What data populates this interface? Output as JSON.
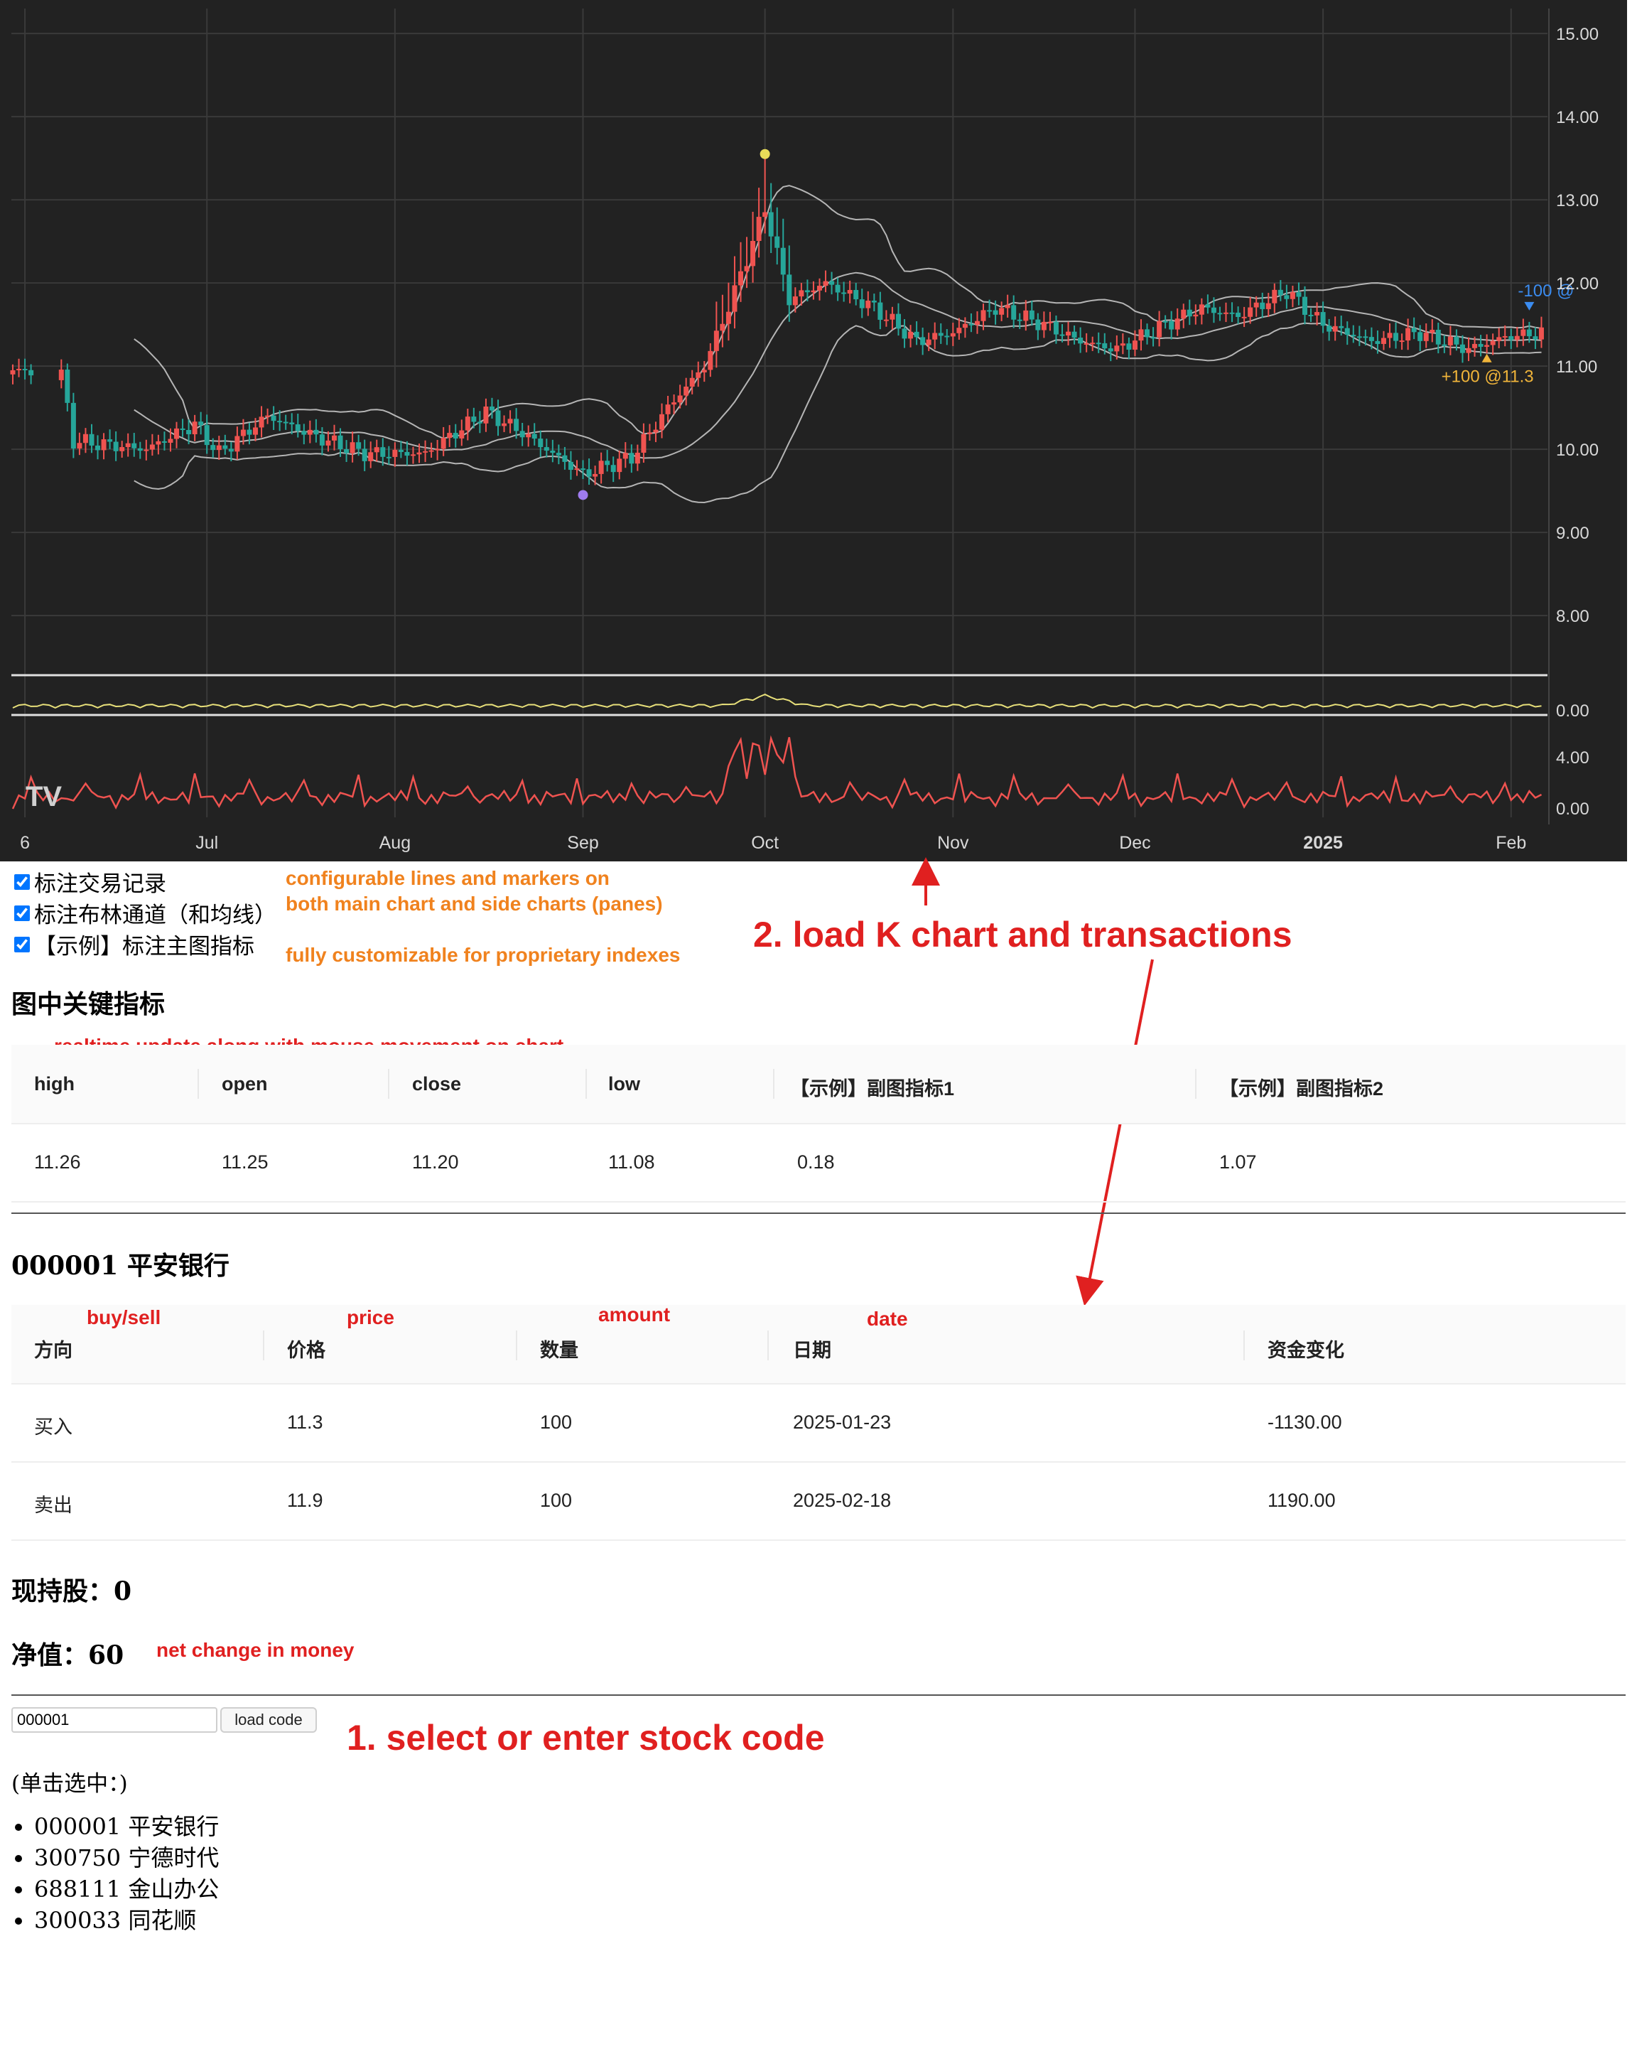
{
  "chart_data": {
    "type": "candlestick",
    "price_ticks": [
      "15.00",
      "14.00",
      "13.00",
      "12.00",
      "11.00",
      "10.00",
      "9.00",
      "8.00"
    ],
    "pane1_ticks": [
      "0.00"
    ],
    "pane2_ticks": [
      "4.00",
      "0.00"
    ],
    "x_ticks": [
      "6",
      "Jul",
      "Aug",
      "Sep",
      "Oct",
      "Nov",
      "Dec",
      "2025",
      "Feb"
    ],
    "x_tick_days": [
      2,
      32,
      63,
      94,
      124,
      155,
      185,
      216,
      247
    ],
    "ylim": [
      7.3,
      15.3
    ],
    "markers": [
      {
        "label": "-100 @",
        "day": 250,
        "price": 11.6,
        "color": "#3b8cf0"
      },
      {
        "label": "+100 @11.3",
        "day": 243,
        "price": 11.2,
        "color": "#f0b43a"
      }
    ],
    "dots": [
      {
        "day": 124,
        "price": 13.55,
        "color": "#e8dc58"
      },
      {
        "day": 94,
        "price": 9.45,
        "color": "#a07cf0"
      }
    ],
    "close_anchors": [
      [
        0,
        10.95
      ],
      [
        8,
        10.9
      ],
      [
        10,
        10.1
      ],
      [
        22,
        10.0
      ],
      [
        30,
        10.3
      ],
      [
        34,
        9.95
      ],
      [
        42,
        10.4
      ],
      [
        50,
        10.15
      ],
      [
        58,
        9.95
      ],
      [
        68,
        9.95
      ],
      [
        78,
        10.45
      ],
      [
        84,
        10.2
      ],
      [
        94,
        9.7
      ],
      [
        102,
        9.9
      ],
      [
        108,
        10.5
      ],
      [
        114,
        11.0
      ],
      [
        119,
        11.9
      ],
      [
        124,
        12.9
      ],
      [
        128,
        11.8
      ],
      [
        134,
        12.0
      ],
      [
        142,
        11.7
      ],
      [
        149,
        11.3
      ],
      [
        155,
        11.4
      ],
      [
        162,
        11.7
      ],
      [
        170,
        11.5
      ],
      [
        176,
        11.3
      ],
      [
        182,
        11.2
      ],
      [
        190,
        11.5
      ],
      [
        196,
        11.7
      ],
      [
        202,
        11.6
      ],
      [
        210,
        11.9
      ],
      [
        216,
        11.5
      ],
      [
        224,
        11.3
      ],
      [
        232,
        11.4
      ],
      [
        240,
        11.2
      ],
      [
        246,
        11.35
      ],
      [
        252,
        11.4
      ]
    ]
  },
  "checkboxes": [
    {
      "label": "标注交易记录",
      "checked": true
    },
    {
      "label": "标注布林通道（和均线）",
      "checked": true
    },
    {
      "label": "【示例】标注主图指标",
      "checked": true
    }
  ],
  "notes": {
    "lines_markers_1": "configurable lines and markers on",
    "lines_markers_2": "both main chart and side charts (panes)",
    "customizable": "fully customizable for proprietary indexes",
    "load_k_chart": "2. load K chart and transactions",
    "realtime": "realtime update along with mouse movement on chart",
    "buy_sell": "buy/sell",
    "price": "price",
    "amount": "amount",
    "date": "date",
    "net_change": "net change in money",
    "select_code": "1. select or enter stock code"
  },
  "indicators": {
    "title": "图中关键指标",
    "headers": [
      "high",
      "open",
      "close",
      "low",
      "【示例】副图指标1",
      "【示例】副图指标2"
    ],
    "values": [
      "11.26",
      "11.25",
      "11.20",
      "11.08",
      "0.18",
      "1.07"
    ]
  },
  "stock": {
    "title": "000001 平安银行",
    "headers": [
      "方向",
      "价格",
      "数量",
      "日期",
      "资金变化"
    ],
    "rows": [
      [
        "买入",
        "11.3",
        "100",
        "2025-01-23",
        "-1130.00"
      ],
      [
        "卖出",
        "11.9",
        "100",
        "2025-02-18",
        "1190.00"
      ]
    ]
  },
  "holdings_label": "现持股：",
  "holdings_value": "0",
  "net_label": "净值：",
  "net_value": "60",
  "code_input": {
    "value": "000001"
  },
  "load_button": "load code",
  "hint": "(单击选中：)",
  "stock_list": [
    "000001 平安银行",
    "300750 宁德时代",
    "688111 金山办公",
    "300033 同花顺"
  ],
  "colors": {
    "up": "#ef5350",
    "down": "#26a69a",
    "bg": "#222222",
    "band": "#cfcfcf",
    "pane1": "#e8e07a",
    "pane2": "#ef5350"
  }
}
